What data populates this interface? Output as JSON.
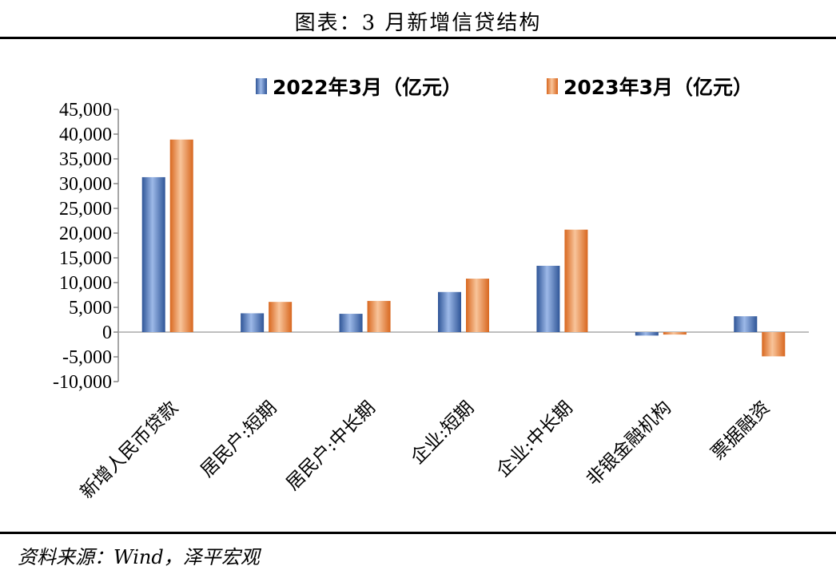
{
  "title": "图表：3 月新增信贷结构",
  "source": "资料来源：Wind，泽平宏观",
  "colors": {
    "series1": "#4472C4",
    "series2": "#ED7D31"
  },
  "chart_data": {
    "type": "bar",
    "title": "",
    "xlabel": "",
    "ylabel": "",
    "ylim": [
      -10000,
      45000
    ],
    "yticks": [
      -10000,
      -5000,
      0,
      5000,
      10000,
      15000,
      20000,
      25000,
      30000,
      35000,
      40000,
      45000
    ],
    "ytick_labels": [
      "-10,000",
      "-5,000",
      "0",
      "5,000",
      "10,000",
      "15,000",
      "20,000",
      "25,000",
      "30,000",
      "35,000",
      "40,000",
      "45,000"
    ],
    "grid": false,
    "legend_position": "top",
    "categories": [
      "新增人民币贷款",
      "居民户:短期",
      "居民户:中长期",
      "企业:短期",
      "企业:中长期",
      "非银金融机构",
      "票据融资"
    ],
    "series": [
      {
        "name": "2022年3月（亿元）",
        "values": [
          31300,
          3800,
          3700,
          8100,
          13400,
          -700,
          3200
        ]
      },
      {
        "name": "2023年3月（亿元）",
        "values": [
          38900,
          6100,
          6300,
          10800,
          20700,
          -500,
          -4900
        ]
      }
    ]
  }
}
